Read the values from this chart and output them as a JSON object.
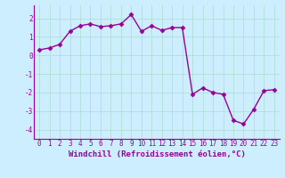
{
  "x": [
    0,
    1,
    2,
    3,
    4,
    5,
    6,
    7,
    8,
    9,
    10,
    11,
    12,
    13,
    14,
    15,
    16,
    17,
    18,
    19,
    20,
    21,
    22,
    23
  ],
  "y": [
    0.3,
    0.4,
    0.6,
    1.3,
    1.6,
    1.7,
    1.55,
    1.6,
    1.7,
    2.2,
    1.3,
    1.6,
    1.35,
    1.5,
    1.5,
    -2.1,
    -1.75,
    -2.0,
    -2.1,
    -3.5,
    -3.7,
    -2.9,
    -1.9,
    -1.85
  ],
  "line_color": "#990099",
  "marker": "D",
  "marker_size": 2.5,
  "bg_color": "#cceeff",
  "grid_color": "#aaddcc",
  "xlabel": "Windchill (Refroidissement éolien,°C)",
  "xlabel_color": "#990099",
  "ylim": [
    -4.5,
    2.7
  ],
  "xlim": [
    -0.5,
    23.5
  ],
  "yticks": [
    -4,
    -3,
    -2,
    -1,
    0,
    1,
    2
  ],
  "xticks": [
    0,
    1,
    2,
    3,
    4,
    5,
    6,
    7,
    8,
    9,
    10,
    11,
    12,
    13,
    14,
    15,
    16,
    17,
    18,
    19,
    20,
    21,
    22,
    23
  ],
  "tick_color": "#990099",
  "tick_fontsize": 5.5,
  "xlabel_fontsize": 6.5,
  "linewidth": 1.0
}
